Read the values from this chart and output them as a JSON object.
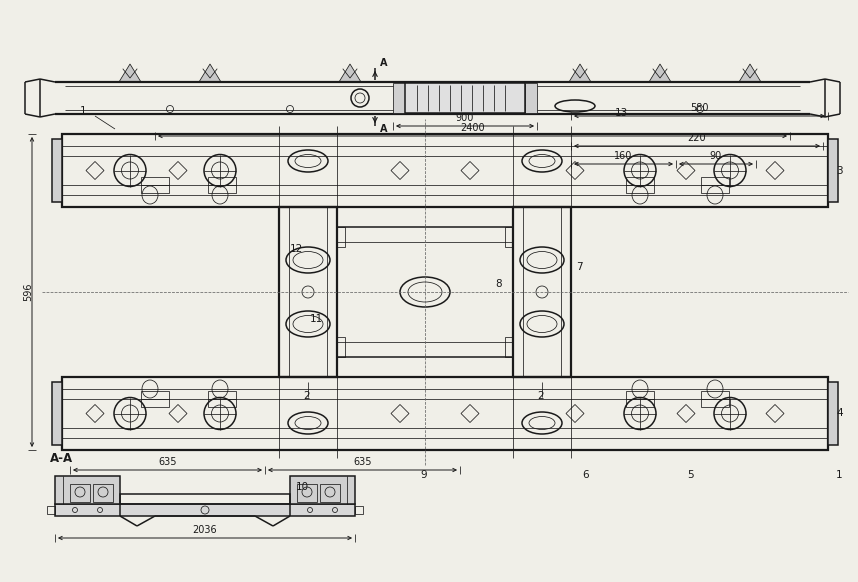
{
  "bg_color": "#f0efe8",
  "line_color": "#1a1a1a",
  "annotations": {
    "top_view": {
      "dim_900": "900",
      "dim_2400": "2400",
      "label_13": "13",
      "label_A": "A"
    },
    "plan_view": {
      "dim_580": "580",
      "dim_635_left": "635",
      "dim_635_right": "635",
      "dim_160": "160",
      "dim_90": "90",
      "dim_220": "220",
      "dim_596": "596",
      "label_1_tl": "1",
      "label_1_br": "1",
      "label_2_left": "2",
      "label_2_right": "2",
      "label_3": "3",
      "label_4": "4",
      "label_5": "5",
      "label_6": "6",
      "label_7": "7",
      "label_8": "8",
      "label_9": "9",
      "label_10": "10",
      "label_11": "11",
      "label_12": "12"
    },
    "section_view": {
      "label_AA": "A-A",
      "dim_2036": "2036"
    }
  }
}
